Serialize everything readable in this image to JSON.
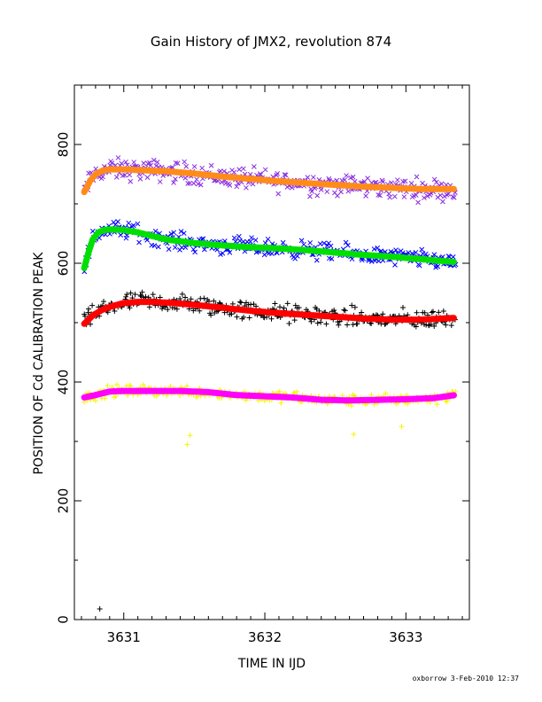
{
  "chart_data": {
    "type": "scatter",
    "title": "Gain History of JMX2, revolution 874",
    "xlabel": "TIME IN IJD",
    "ylabel": "POSITION OF Cd CALIBRATION PEAK",
    "xlim": [
      3630.65,
      3633.45
    ],
    "ylim": [
      0,
      900
    ],
    "xticks": [
      3631,
      3632,
      3633
    ],
    "xtick_labels": [
      "3631",
      "3632",
      "3633"
    ],
    "yticks": [
      0,
      200,
      400,
      600,
      800
    ],
    "ytick_labels": [
      "0",
      "200",
      "400",
      "600",
      "800"
    ],
    "grid": false,
    "credit": "oxborrow   3-Feb-2010 12:37",
    "series": [
      {
        "marker": "x",
        "color": "#8a2be2",
        "points_type": "scatter",
        "x_range": [
          3630.72,
          3633.35
        ],
        "curve_ref": 0,
        "spread": 22
      },
      {
        "marker": "line",
        "color": "#ff8c1a",
        "points_type": "line",
        "x": [
          3630.72,
          3630.76,
          3630.8,
          3630.85,
          3630.9,
          3630.95,
          3631.0,
          3631.1,
          3631.2,
          3631.3,
          3631.4,
          3631.5,
          3631.7,
          3631.9,
          3632.1,
          3632.3,
          3632.5,
          3632.7,
          3632.9,
          3633.1,
          3633.35
        ],
        "y": [
          720,
          738,
          750,
          756,
          758,
          758,
          758,
          757,
          756,
          755,
          753,
          751,
          746,
          742,
          738,
          735,
          732,
          729,
          727,
          725,
          725
        ]
      },
      {
        "marker": "x",
        "color": "#0000ff",
        "points_type": "scatter",
        "x_range": [
          3630.72,
          3633.35
        ],
        "curve_ref": 2,
        "spread": 18
      },
      {
        "marker": "line",
        "color": "#00e000",
        "points_type": "line",
        "x": [
          3630.72,
          3630.75,
          3630.78,
          3630.82,
          3630.86,
          3630.9,
          3631.0,
          3631.1,
          3631.2,
          3631.3,
          3631.5,
          3631.7,
          3631.9,
          3632.1,
          3632.3,
          3632.5,
          3632.7,
          3632.9,
          3633.1,
          3633.35
        ],
        "y": [
          592,
          618,
          640,
          652,
          656,
          657,
          656,
          652,
          646,
          640,
          634,
          630,
          627,
          625,
          622,
          618,
          614,
          611,
          607,
          602
        ]
      },
      {
        "marker": "plus",
        "color": "#000000",
        "points_type": "scatter",
        "x_range": [
          3630.72,
          3633.35
        ],
        "curve_ref": 4,
        "spread": 20,
        "outliers": [
          {
            "x": 3630.83,
            "y": 18
          }
        ]
      },
      {
        "marker": "line",
        "color": "#ff0000",
        "points_type": "line",
        "x": [
          3630.72,
          3630.78,
          3630.85,
          3630.92,
          3631.0,
          3631.1,
          3631.2,
          3631.35,
          3631.5,
          3631.7,
          3631.9,
          3632.1,
          3632.3,
          3632.5,
          3632.7,
          3632.9,
          3633.1,
          3633.35
        ],
        "y": [
          498,
          512,
          522,
          528,
          533,
          535,
          535,
          533,
          530,
          525,
          520,
          516,
          513,
          510,
          507,
          505,
          505,
          508
        ]
      },
      {
        "marker": "plus",
        "color": "#f5f500",
        "points_type": "scatter",
        "x_range": [
          3630.72,
          3633.35
        ],
        "curve_ref": 6,
        "spread": 12,
        "outliers": [
          {
            "x": 3631.45,
            "y": 295
          },
          {
            "x": 3631.47,
            "y": 310
          },
          {
            "x": 3632.97,
            "y": 325
          },
          {
            "x": 3632.63,
            "y": 312
          }
        ]
      },
      {
        "marker": "line",
        "color": "#ff00ff",
        "points_type": "line",
        "x": [
          3630.72,
          3630.8,
          3630.9,
          3631.0,
          3631.2,
          3631.4,
          3631.6,
          3631.8,
          3632.0,
          3632.2,
          3632.4,
          3632.6,
          3632.8,
          3633.0,
          3633.2,
          3633.35
        ],
        "y": [
          374,
          378,
          384,
          385,
          385,
          385,
          383,
          378,
          376,
          374,
          370,
          369,
          370,
          371,
          373,
          378
        ]
      }
    ]
  }
}
